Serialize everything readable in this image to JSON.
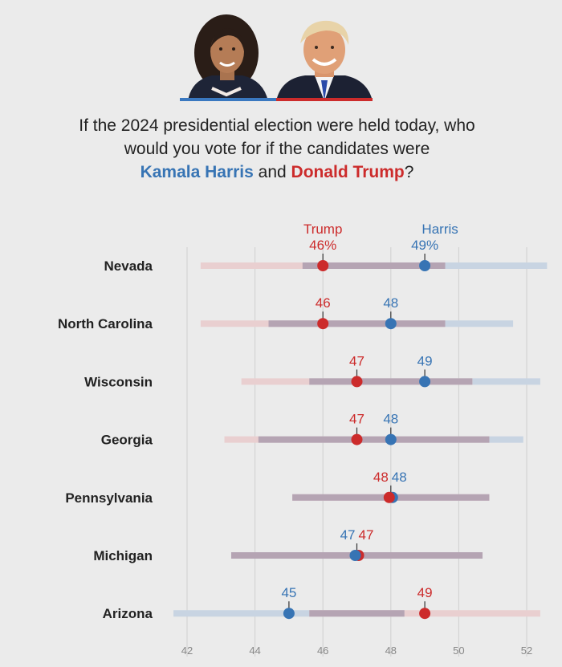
{
  "question": {
    "line1": "If the 2024 presidential election were held today, who",
    "line2": "would you vote for if the candidates were",
    "harris_name": "Kamala Harris",
    "and_text": " and ",
    "trump_name": "Donald Trump",
    "end_text": "?"
  },
  "colors": {
    "harris": "#3774b4",
    "trump": "#cc2b2b",
    "overlap": "#b5a4b3",
    "harris_range": "#c8d4e2",
    "trump_range": "#e9cfd0",
    "grid": "#cfcfcf"
  },
  "chart_data": {
    "type": "dot-range",
    "xlim": [
      41,
      53
    ],
    "xticks": [
      42,
      44,
      46,
      48,
      50,
      52
    ],
    "tick_labels": [
      "42",
      "44",
      "46",
      "48",
      "50",
      "52"
    ],
    "series_labels": {
      "trump": "Trump",
      "harris": "Harris"
    },
    "states": [
      {
        "name": "Nevada",
        "trump": 46,
        "harris": 49,
        "trump_label": "46%",
        "harris_label": "49%",
        "trump_range": [
          42.4,
          49.6
        ],
        "harris_range": [
          45.4,
          52.6
        ]
      },
      {
        "name": "North Carolina",
        "trump": 46,
        "harris": 48,
        "trump_label": "46",
        "harris_label": "48",
        "trump_range": [
          42.4,
          49.6
        ],
        "harris_range": [
          44.4,
          51.6
        ]
      },
      {
        "name": "Wisconsin",
        "trump": 47,
        "harris": 49,
        "trump_label": "47",
        "harris_label": "49",
        "trump_range": [
          43.6,
          50.4
        ],
        "harris_range": [
          45.6,
          52.4
        ]
      },
      {
        "name": "Georgia",
        "trump": 47,
        "harris": 48,
        "trump_label": "47",
        "harris_label": "48",
        "trump_range": [
          43.1,
          50.9
        ],
        "harris_range": [
          44.1,
          51.9
        ]
      },
      {
        "name": "Pennsylvania",
        "trump": 48,
        "harris": 48,
        "trump_label": "48",
        "harris_label": "48",
        "trump_range": [
          45.1,
          50.9
        ],
        "harris_range": [
          45.1,
          50.9
        ]
      },
      {
        "name": "Michigan",
        "trump": 47,
        "harris": 47,
        "trump_label": "47",
        "harris_label": "47",
        "trump_range": [
          43.3,
          50.7
        ],
        "harris_range": [
          43.3,
          50.7
        ]
      },
      {
        "name": "Arizona",
        "trump": 49,
        "harris": 45,
        "trump_label": "49",
        "harris_label": "45",
        "trump_range": [
          45.6,
          52.4
        ],
        "harris_range": [
          41.6,
          48.4
        ]
      }
    ]
  }
}
